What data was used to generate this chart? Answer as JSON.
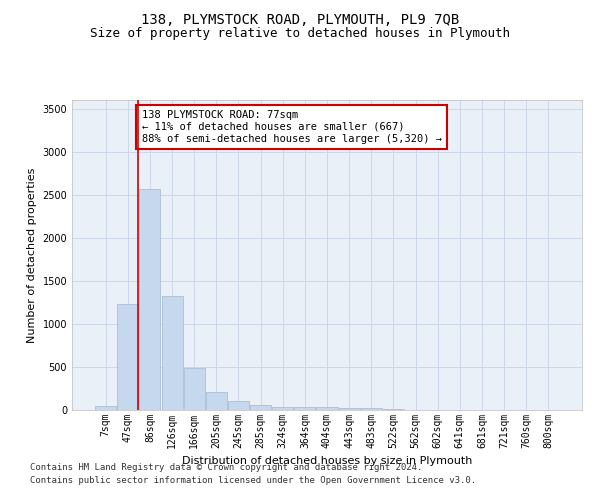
{
  "title": "138, PLYMSTOCK ROAD, PLYMOUTH, PL9 7QB",
  "subtitle": "Size of property relative to detached houses in Plymouth",
  "xlabel": "Distribution of detached houses by size in Plymouth",
  "ylabel": "Number of detached properties",
  "categories": [
    "7sqm",
    "47sqm",
    "86sqm",
    "126sqm",
    "166sqm",
    "205sqm",
    "245sqm",
    "285sqm",
    "324sqm",
    "364sqm",
    "404sqm",
    "443sqm",
    "483sqm",
    "522sqm",
    "562sqm",
    "602sqm",
    "641sqm",
    "681sqm",
    "721sqm",
    "760sqm",
    "800sqm"
  ],
  "values": [
    50,
    1230,
    2570,
    1320,
    490,
    210,
    110,
    60,
    40,
    30,
    30,
    25,
    20,
    10,
    5,
    5,
    3,
    2,
    2,
    1,
    1
  ],
  "bar_color": "#c5d8ed",
  "bar_edgecolor": "#a0b8d0",
  "vline_color": "#cc0000",
  "annotation_text": "138 PLYMSTOCK ROAD: 77sqm\n← 11% of detached houses are smaller (667)\n88% of semi-detached houses are larger (5,320) →",
  "annotation_box_edgecolor": "#cc0000",
  "annotation_box_facecolor": "#ffffff",
  "ylim": [
    0,
    3600
  ],
  "yticks": [
    0,
    500,
    1000,
    1500,
    2000,
    2500,
    3000,
    3500
  ],
  "footer_line1": "Contains HM Land Registry data © Crown copyright and database right 2024.",
  "footer_line2": "Contains public sector information licensed under the Open Government Licence v3.0.",
  "background_color": "#ffffff",
  "plot_bg_color": "#eaf0f8",
  "grid_color": "#c8d4e8",
  "title_fontsize": 10,
  "subtitle_fontsize": 9,
  "axis_label_fontsize": 8,
  "tick_fontsize": 7,
  "annotation_fontsize": 7.5,
  "footer_fontsize": 6.5
}
